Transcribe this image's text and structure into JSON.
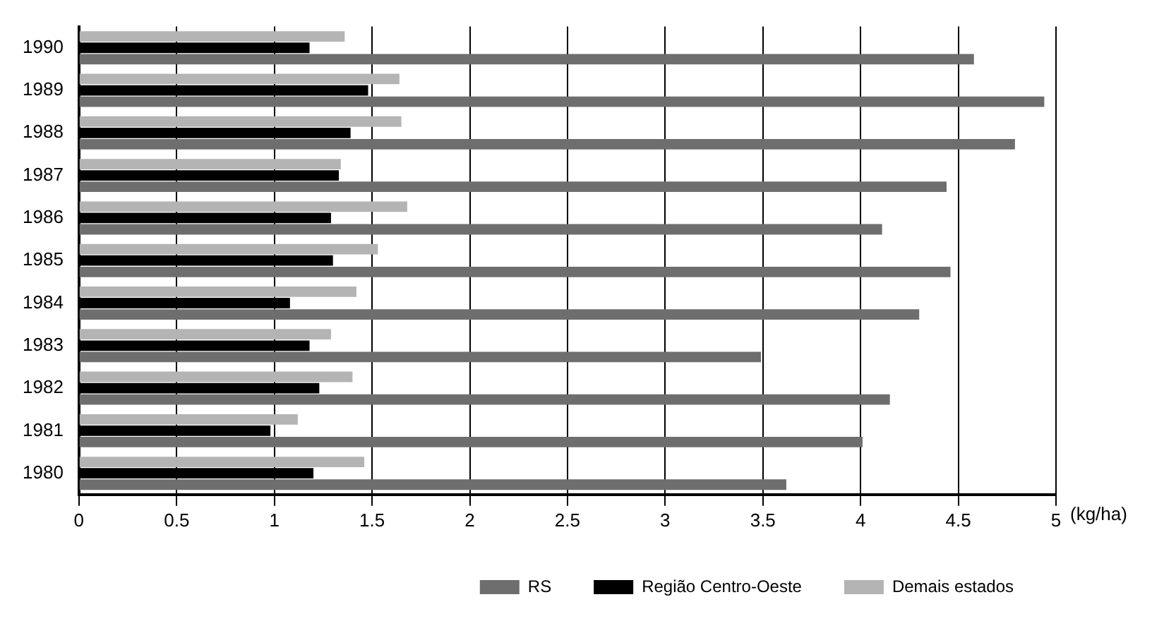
{
  "chart_data": {
    "type": "bar",
    "orientation": "horizontal",
    "xlabel": "(kg/ha)",
    "categories": [
      "1990",
      "1989",
      "1988",
      "1987",
      "1986",
      "1985",
      "1984",
      "1983",
      "1982",
      "1981",
      "1980"
    ],
    "series": [
      {
        "name": "RS",
        "color": "#6e6e6e",
        "values": [
          4.58,
          4.94,
          4.79,
          4.44,
          4.11,
          4.46,
          4.3,
          3.49,
          4.15,
          4.01,
          3.62
        ]
      },
      {
        "name": "Região Centro-Oeste",
        "color": "#000000",
        "values": [
          1.18,
          1.48,
          1.39,
          1.33,
          1.29,
          1.3,
          1.08,
          1.18,
          1.23,
          0.98,
          1.2
        ]
      },
      {
        "name": "Demais estados",
        "color": "#b4b4b4",
        "values": [
          1.36,
          1.64,
          1.65,
          1.34,
          1.68,
          1.53,
          1.42,
          1.29,
          1.4,
          1.12,
          1.46
        ]
      }
    ],
    "xlim": [
      0,
      5
    ],
    "xticks": [
      0,
      0.5,
      1,
      1.5,
      2,
      2.5,
      3,
      3.5,
      4,
      4.5,
      5
    ],
    "grid": "x",
    "legend": "bottom right"
  }
}
